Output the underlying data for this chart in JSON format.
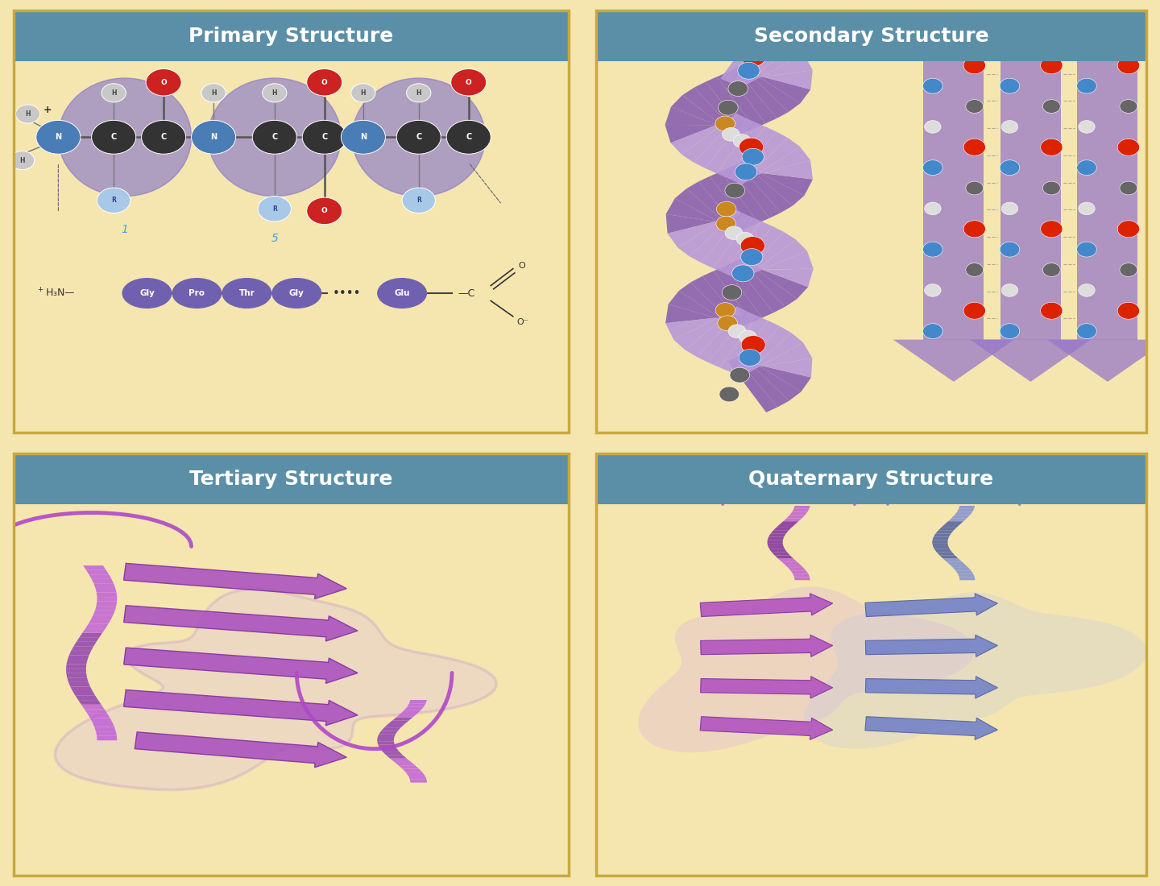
{
  "background_color": "#F5E6B0",
  "header_color": "#5B8FA8",
  "header_text_color": "#FFFFFF",
  "panel_titles": [
    "Primary Structure",
    "Secondary Structure",
    "Tertiary Structure",
    "Quaternary Structure"
  ],
  "title_fontsize": 18,
  "panel_border_color": "#C8A840",
  "amino_acids": [
    "Gly",
    "Pro",
    "Thr",
    "Gly",
    "Glu"
  ],
  "aa_color": "#7060B0",
  "ellipse_color": "#8878C8",
  "n_color": "#4A7CB5",
  "c_color": "#333333",
  "o_color": "#CC2222",
  "h_color": "#C8C8C8",
  "r_color": "#A8C8E8"
}
